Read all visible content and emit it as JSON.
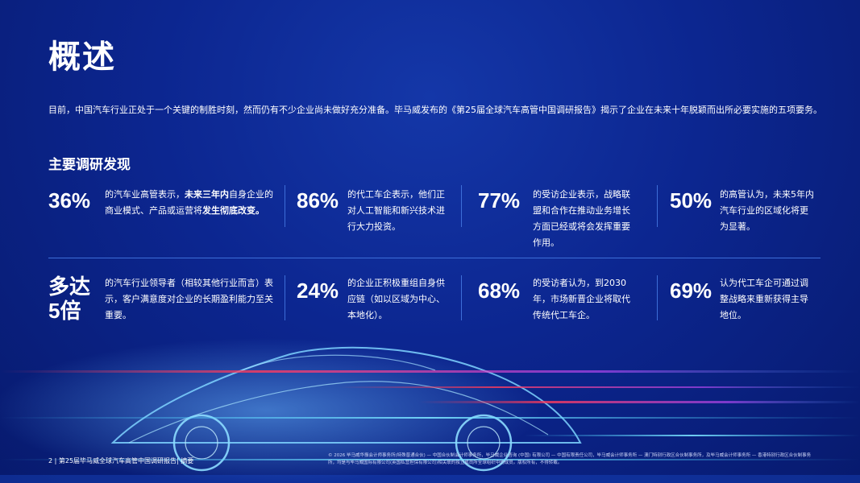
{
  "page": {
    "title": "概述",
    "intro": "目前，中国汽车行业正处于一个关键的制胜时刻，然而仍有不少企业尚未做好充分准备。毕马威发布的《第25届全球汽车高管中国调研报告》揭示了企业在未来十年脱颖而出所必要实施的五项要务。",
    "section_title": "主要调研发现"
  },
  "stats": [
    {
      "num": "36%",
      "text_a": "的汽车业高管表示，",
      "text_b": "未来三年内",
      "text_c": "自身企业的商业模式、产品或运营将",
      "text_d": "发生彻底改变。"
    },
    {
      "num": "86%",
      "text": "的代工车企表示，他们正对人工智能和新兴技术进行大力投资。"
    },
    {
      "num": "77%",
      "text": "的受访企业表示，战略联盟和合作在推动业务增长方面已经或将会发挥重要作用。"
    },
    {
      "num": "50%",
      "text": "的高管认为，未来5年内汽车行业的区域化将更为显著。"
    },
    {
      "num": "多达\n5倍",
      "num_line1": "多达",
      "num_line2": "5倍",
      "text": "的汽车行业领导者（相较其他行业而言）表示，客户满意度对企业的长期盈利能力至关重要。"
    },
    {
      "num": "24%",
      "text": "的企业正积极重组自身供应链（如以区域为中心、本地化）。"
    },
    {
      "num": "68%",
      "text": "的受访者认为，到2030年，市场新晋企业将取代传统代工车企。"
    },
    {
      "num": "69%",
      "text": "认为代工车企可通过调整战略来重新获得主导地位。"
    }
  ],
  "footer": {
    "page_label": "2 | 第25届毕马威全球汽车高管中国调研报告| 摘要",
    "legal": "© 2026 毕马威华振会计师事务所(特殊普通合伙) — 中国合伙制会计师事务所，毕马威企业咨询 (中国) 有限公司 — 中国有限责任公司，毕马威会计师事务所 — 澳门特别行政区合伙制事务所，及毕马威会计师事务所 — 香港特别行政区合伙制事务所，均是与毕马威国际有限公司(英国私营担保有限公司)相关联的独立成员所全球组织中的成员。版权所有，不得转载。"
  },
  "colors": {
    "background": "#0c2690",
    "separator": "#3d6ed8"
  }
}
